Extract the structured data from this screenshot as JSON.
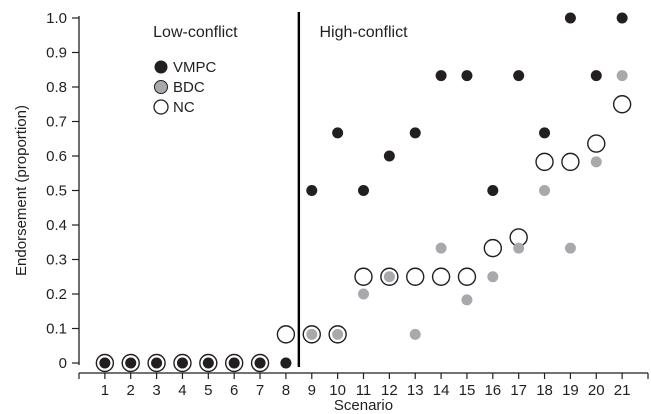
{
  "chart_data": {
    "type": "scatter",
    "xlabel": "Scenario",
    "ylabel": "Endorsement (proportion)",
    "x": [
      1,
      2,
      3,
      4,
      5,
      6,
      7,
      8,
      9,
      10,
      11,
      12,
      13,
      14,
      15,
      16,
      17,
      18,
      19,
      20,
      21
    ],
    "xlim": [
      0,
      22
    ],
    "ylim": [
      0,
      1.0
    ],
    "y_ticks": [
      0,
      0.1,
      0.2,
      0.3,
      0.4,
      0.5,
      0.6,
      0.7,
      0.8,
      0.9,
      1.0
    ],
    "y_tick_labels": [
      "0",
      "0.1",
      "0.2",
      "0.3",
      "0.4",
      "0.5",
      "0.6",
      "0.7",
      "0.8",
      "0.9",
      "1.0"
    ],
    "divider_x": 8.5,
    "regions": [
      {
        "label": "Low-conflict",
        "x_center": 4.5
      },
      {
        "label": "High-conflict",
        "x_center": 11.0
      }
    ],
    "legend_position": "upper-left",
    "grid": false,
    "series": [
      {
        "name": "VMPC",
        "marker": "filled-small",
        "color": "#231f20",
        "values": [
          0,
          0,
          0,
          0,
          0,
          0,
          0,
          0,
          0.5,
          0.667,
          0.5,
          0.6,
          0.667,
          0.833,
          0.833,
          0.5,
          0.833,
          0.667,
          1.0,
          0.833,
          1.0
        ]
      },
      {
        "name": "BDC",
        "marker": "filled-small",
        "color": "#a7a9ac",
        "values": [
          0,
          0,
          0,
          0,
          0,
          0,
          0,
          0,
          0.083,
          0.083,
          0.2,
          0.25,
          0.083,
          0.333,
          0.183,
          0.25,
          0.333,
          0.5,
          0.333,
          0.583,
          0.833
        ]
      },
      {
        "name": "NC",
        "marker": "open-large",
        "color": "#231f20",
        "values": [
          0,
          0,
          0,
          0,
          0,
          0,
          0,
          0.083,
          0.083,
          0.083,
          0.25,
          0.25,
          0.25,
          0.25,
          0.25,
          0.333,
          0.364,
          0.583,
          0.583,
          0.636,
          0.75
        ]
      }
    ]
  }
}
